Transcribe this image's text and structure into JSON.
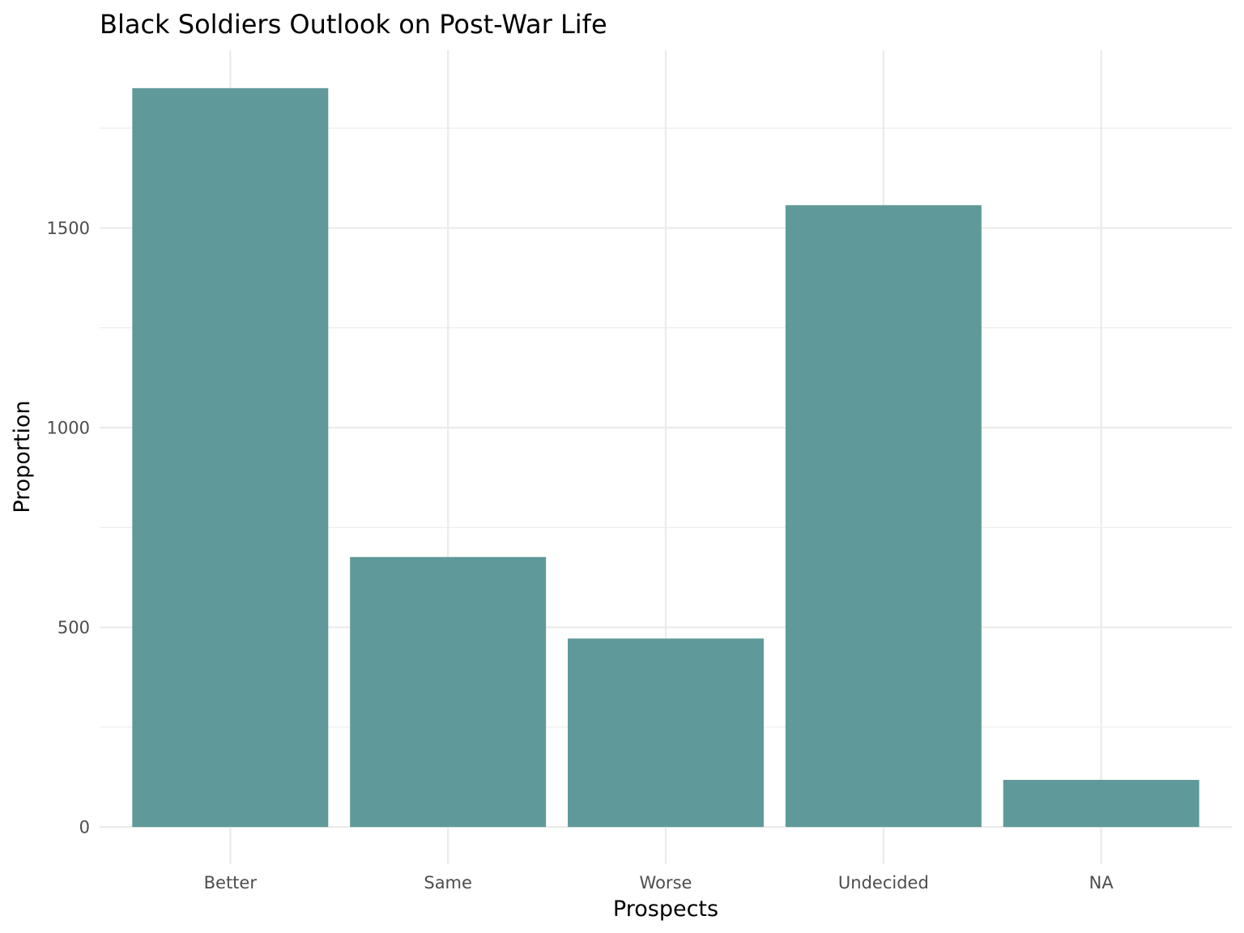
{
  "chart_data": {
    "type": "bar",
    "title": "Black Soldiers Outlook on Post-War Life",
    "xlabel": "Prospects",
    "ylabel": "Proportion",
    "categories": [
      "Better",
      "Same",
      "Worse",
      "Undecided",
      "NA"
    ],
    "values": [
      1850,
      676,
      472,
      1557,
      118
    ],
    "ylim": [
      -93,
      1945
    ],
    "yticks": [
      0,
      500,
      1000,
      1500
    ],
    "yticks_minor": [
      250,
      750,
      1250,
      1750
    ],
    "ytick_labels": [
      "0",
      "500",
      "1000",
      "1500"
    ],
    "grid": true,
    "legend": "none",
    "colors": {
      "bar": "#5f9999",
      "grid": "#ebebeb",
      "background": "#ffffff"
    }
  }
}
